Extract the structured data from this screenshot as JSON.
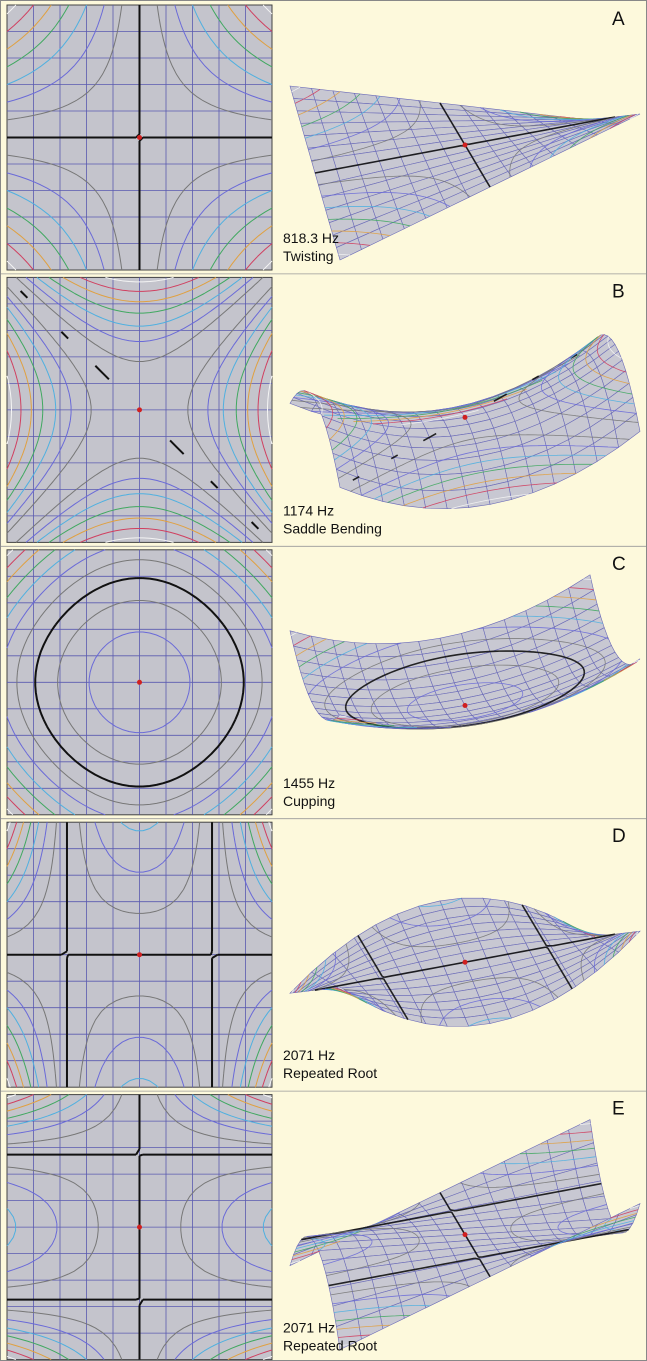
{
  "panels": [
    {
      "letter": "A",
      "frequency": "818.3 Hz",
      "mode": "Twisting"
    },
    {
      "letter": "B",
      "frequency": "1174 Hz",
      "mode": "Saddle Bending"
    },
    {
      "letter": "C",
      "frequency": "1455 Hz",
      "mode": "Cupping"
    },
    {
      "letter": "D",
      "frequency": "2071 Hz",
      "mode": "Repeated Root"
    },
    {
      "letter": "E",
      "frequency": "2071 Hz",
      "mode": "Repeated Root"
    }
  ]
}
